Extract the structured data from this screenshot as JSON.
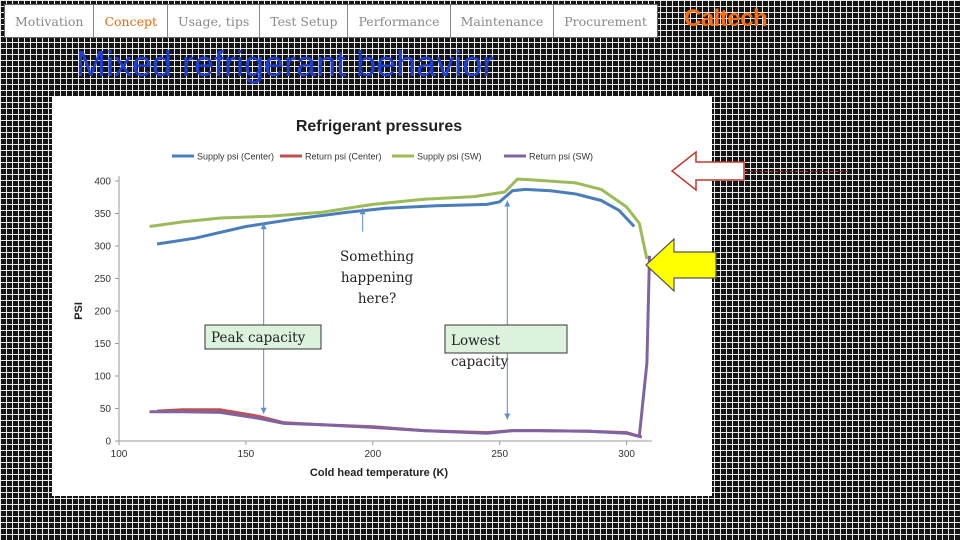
{
  "nav": {
    "items": [
      {
        "label": "Motivation",
        "active": false
      },
      {
        "label": "Concept",
        "active": true
      },
      {
        "label": "Usage, tips",
        "active": false
      },
      {
        "label": "Test Setup",
        "active": false
      },
      {
        "label": "Performance",
        "active": false
      },
      {
        "label": "Maintenance",
        "active": false
      },
      {
        "label": "Procurement",
        "active": false
      }
    ]
  },
  "header": {
    "logo": "Caltech"
  },
  "slide": {
    "title": "Mixed refrigerant behavior"
  },
  "colors": {
    "nav_active": "#e86a0a",
    "logo": "#ff6c0c",
    "title": "#1f3fd6",
    "supply_center": "#4a7ebb",
    "return_center": "#c0504d",
    "supply_sw": "#9bbb59",
    "return_sw": "#8064a2",
    "arrow_yellow": "#ffff00"
  },
  "chart_data": {
    "type": "line",
    "title": "Refrigerant pressures",
    "xlabel": "Cold head temperature (K)",
    "ylabel": "PSI",
    "xlim": [
      100,
      310
    ],
    "ylim": [
      0,
      420
    ],
    "xticks": [
      "100",
      "150",
      "200",
      "250",
      "300"
    ],
    "yticks": [
      "0",
      "50",
      "100",
      "150",
      "200",
      "250",
      "300",
      "350",
      "400"
    ],
    "grid": false,
    "legend_position": "top",
    "series": [
      {
        "name": "Supply psi (Center)",
        "color": "#4a7ebb",
        "x": [
          115,
          130,
          150,
          170,
          190,
          205,
          225,
          245,
          250,
          255,
          260,
          270,
          280,
          290,
          297,
          303
        ],
        "y": [
          303,
          312,
          330,
          342,
          352,
          358,
          362,
          364,
          368,
          385,
          387,
          385,
          380,
          370,
          355,
          330
        ]
      },
      {
        "name": "Return psi (Center)",
        "color": "#c0504d",
        "x": [
          115,
          125,
          140,
          155,
          165,
          180,
          200,
          220,
          245,
          255,
          265,
          285,
          300,
          306
        ],
        "y": [
          46,
          48,
          48,
          38,
          28,
          25,
          22,
          16,
          13,
          16,
          16,
          15,
          13,
          6
        ]
      },
      {
        "name": "Supply psi (SW)",
        "color": "#9bbb59",
        "x": [
          112,
          125,
          140,
          160,
          180,
          200,
          220,
          240,
          252,
          257,
          262,
          280,
          290,
          300,
          305,
          308
        ],
        "y": [
          330,
          337,
          343,
          346,
          352,
          364,
          372,
          376,
          383,
          403,
          402,
          397,
          387,
          360,
          335,
          280
        ]
      },
      {
        "name": "Return psi (SW)",
        "color": "#8064a2",
        "x": [
          112,
          125,
          140,
          155,
          165,
          180,
          200,
          220,
          245,
          255,
          265,
          285,
          300,
          305,
          308,
          309
        ],
        "y": [
          45,
          45,
          44,
          35,
          27,
          25,
          21,
          16,
          12,
          16,
          16,
          15,
          12,
          7,
          120,
          285
        ]
      }
    ],
    "annotations": [
      {
        "text": "Something happening here?"
      },
      {
        "text": "Peak capacity"
      },
      {
        "text": "Lowest capacity"
      }
    ]
  }
}
